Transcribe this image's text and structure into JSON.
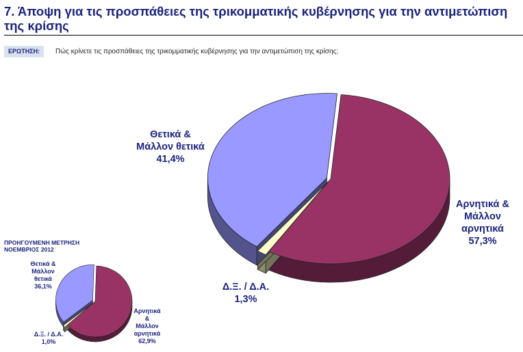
{
  "header": {
    "title": "7.  Άποψη για τις προσπάθειες της τρικομματικής κυβέρνησης για την αντιμετώπιση της κρίσης",
    "question_tag": "ΕΡΩΤΗΣΗ:",
    "question_text": "Πώς κρίνετε τις προσπάθειες της τρικομματικής κυβέρνησης για την αντιμετώπιση της κρίσης;"
  },
  "previous": {
    "heading_line1": "ΠΡΟΗΓΟΥΜΕΝΗ ΜΕΤΡΗΣΗ",
    "heading_line2": "ΝΟΕΜΒΡΙΟΣ 2012"
  },
  "colors": {
    "negative": "#993366",
    "positive": "#9999ff",
    "dk": "#ffffcc"
  },
  "chart_data": [
    {
      "type": "pie",
      "title": "",
      "slices": [
        {
          "key": "negative",
          "label_lines": [
            "Αρνητικά &",
            "Μάλλον",
            "αρνητικά"
          ],
          "value": 57.3,
          "value_label": "57,3%"
        },
        {
          "key": "dk",
          "label_lines": [
            "Δ.Ξ. / Δ.Α."
          ],
          "value": 1.3,
          "value_label": "1,3%"
        },
        {
          "key": "positive",
          "label_lines": [
            "Θετικά &",
            "Μάλλον θετικά"
          ],
          "value": 41.4,
          "value_label": "41,4%"
        }
      ]
    },
    {
      "type": "pie",
      "title": "ΠΡΟΗΓΟΥΜΕΝΗ ΜΕΤΡΗΣΗ ΝΟΕΜΒΡΙΟΣ 2012",
      "slices": [
        {
          "key": "negative",
          "label_lines": [
            "Αρνητικά",
            "&",
            "Μάλλον",
            "αρνητικά"
          ],
          "value": 62.9,
          "value_label": "62,9%"
        },
        {
          "key": "dk",
          "label_lines": [
            "Δ.Ξ. / Δ.Α."
          ],
          "value": 1.0,
          "value_label": "1,0%"
        },
        {
          "key": "positive",
          "label_lines": [
            "Θετικά &",
            "Μάλλον",
            "θετικά"
          ],
          "value": 36.1,
          "value_label": "36,1%"
        }
      ]
    }
  ]
}
